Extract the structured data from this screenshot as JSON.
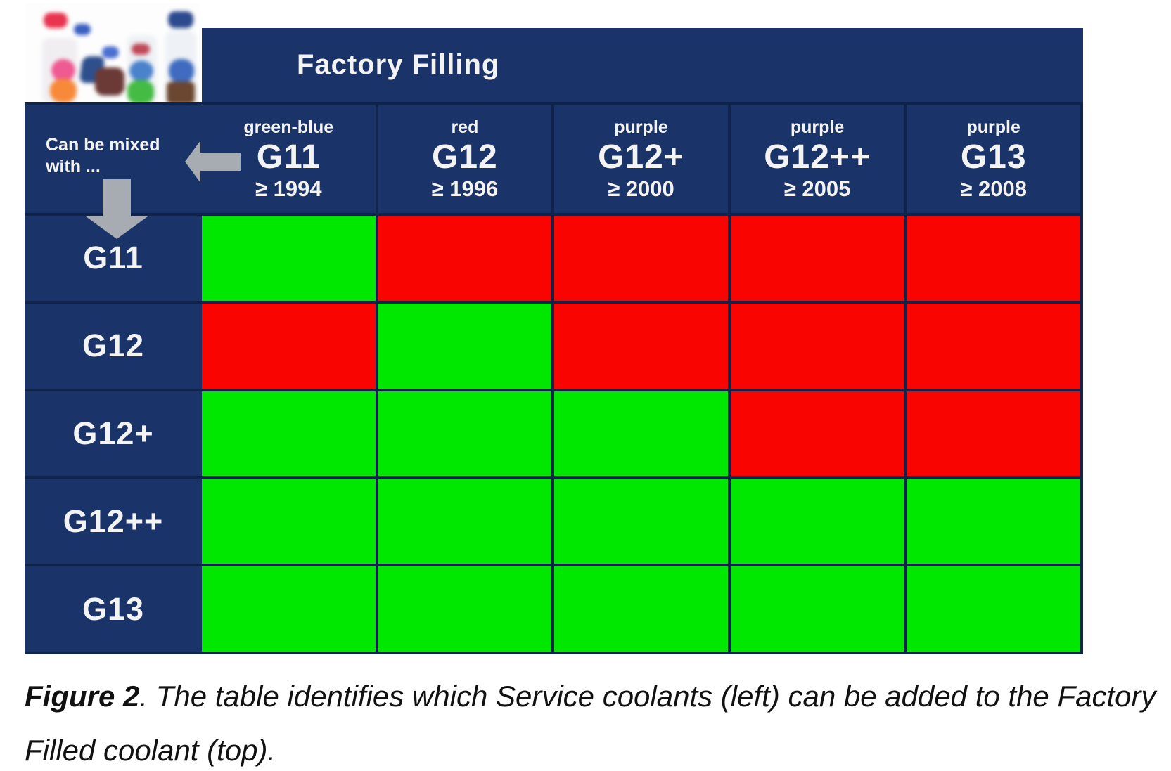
{
  "factory_band": {
    "title": "Factory Filling"
  },
  "corner": {
    "line1": "Can be mixed",
    "line2": "with ..."
  },
  "columns": [
    {
      "color_label": "green-blue",
      "name": "G11",
      "year": "≥ 1994"
    },
    {
      "color_label": "red",
      "name": "G12",
      "year": "≥ 1996"
    },
    {
      "color_label": "purple",
      "name": "G12+",
      "year": "≥ 2000"
    },
    {
      "color_label": "purple",
      "name": "G12++",
      "year": "≥ 2005"
    },
    {
      "color_label": "purple",
      "name": "G13",
      "year": "≥ 2008"
    }
  ],
  "rows": [
    {
      "label": "G11",
      "cells": [
        "green",
        "red",
        "red",
        "red",
        "red"
      ]
    },
    {
      "label": "G12",
      "cells": [
        "red",
        "green",
        "red",
        "red",
        "red"
      ]
    },
    {
      "label": "G12+",
      "cells": [
        "green",
        "green",
        "green",
        "red",
        "red"
      ]
    },
    {
      "label": "G12++",
      "cells": [
        "green",
        "green",
        "green",
        "green",
        "green"
      ]
    },
    {
      "label": "G13",
      "cells": [
        "green",
        "green",
        "green",
        "green",
        "green"
      ]
    }
  ],
  "colors": {
    "navy": "#1a3368",
    "gridline": "#10234a",
    "green": "#00e800",
    "red": "#f90400",
    "arrow_gray": "#a7acb3"
  },
  "caption": {
    "bold": "Figure 2",
    "line1_rest": ". The table identifies which Service coolants (left) can be added to the Factory",
    "line2": "Filled coolant (top)."
  },
  "chart_data": {
    "type": "table",
    "title": "Factory Filling",
    "row_axis_label": "Can be mixed with ...",
    "columns": [
      "G11 (green-blue, ≥ 1994)",
      "G12 (red, ≥ 1996)",
      "G12+ (purple, ≥ 2000)",
      "G12++ (purple, ≥ 2005)",
      "G13 (purple, ≥ 2008)"
    ],
    "rows": [
      "G11",
      "G12",
      "G12+",
      "G12++",
      "G13"
    ],
    "matrix": [
      [
        "green",
        "red",
        "red",
        "red",
        "red"
      ],
      [
        "red",
        "green",
        "red",
        "red",
        "red"
      ],
      [
        "green",
        "green",
        "green",
        "red",
        "red"
      ],
      [
        "green",
        "green",
        "green",
        "green",
        "green"
      ],
      [
        "green",
        "green",
        "green",
        "green",
        "green"
      ]
    ]
  }
}
